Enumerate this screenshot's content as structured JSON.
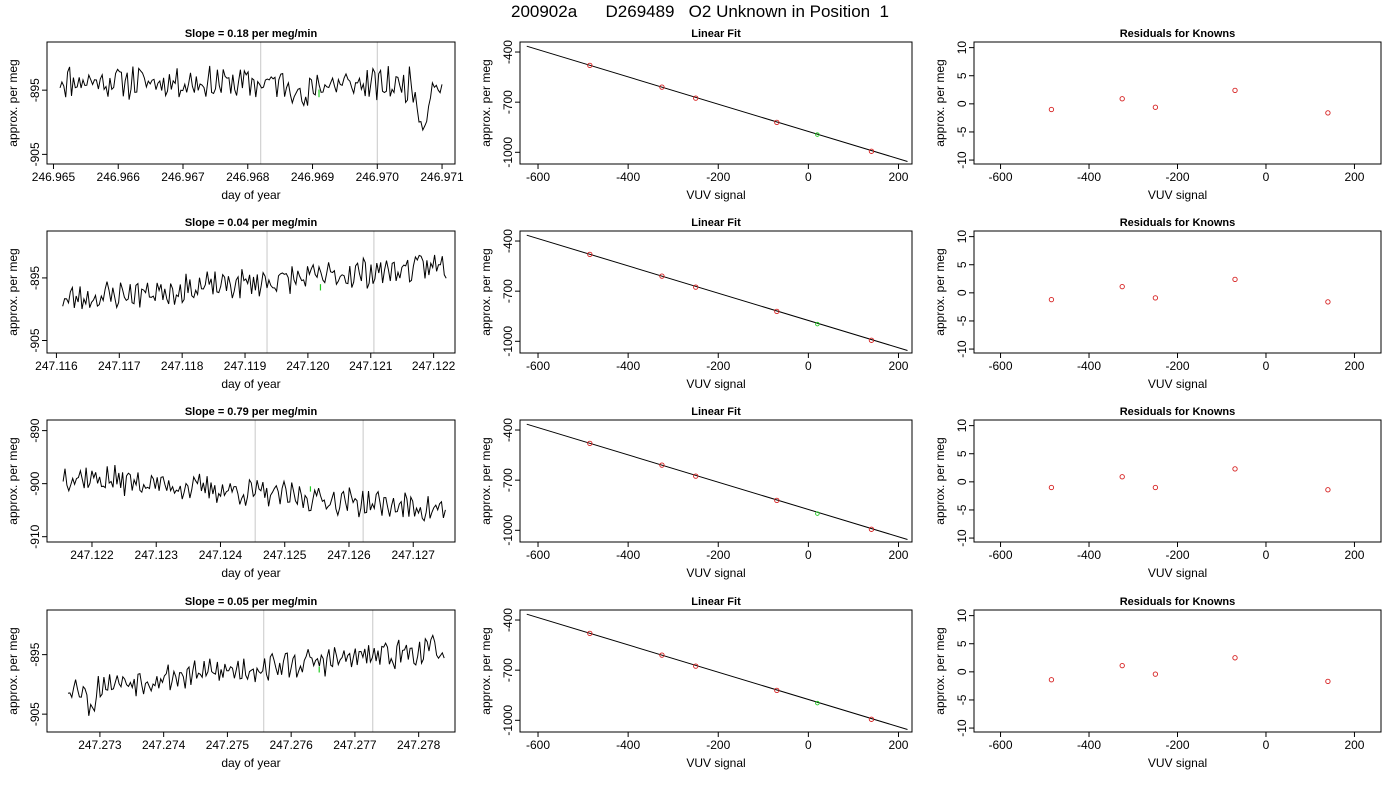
{
  "figure_title": "200902a      D269489   O2 Unknown in Position  1",
  "colors": {
    "line": "#000000",
    "vline": "#c8c8c8",
    "known": "#d62020",
    "unknown": "#22cc22",
    "frame": "#000000"
  },
  "chart_data": [
    {
      "type": "line",
      "row": 1,
      "col": 1,
      "title": "Slope =  0.18  per meg/min",
      "xlabel": "day of year",
      "ylabel": "approx. per meg",
      "xlim": [
        246.9649,
        246.9712
      ],
      "ylim": [
        -906.5,
        -887.5
      ],
      "xticks": [
        246.965,
        246.966,
        246.967,
        246.968,
        246.969,
        246.97,
        246.971
      ],
      "xtick_labels": [
        "246.965",
        "246.966",
        "246.967",
        "246.968",
        "246.969",
        "246.970",
        "246.971"
      ],
      "yticks": [
        -895,
        -905
      ],
      "ytick_labels": [
        "-895",
        "-905"
      ],
      "vlines": [
        246.9682,
        246.97
      ],
      "series": [
        {
          "x_start": 246.9651,
          "x_end": 246.971,
          "seed": 11,
          "mean": -893.5,
          "trend": -0.8,
          "noise": 2.2,
          "dips": [
            [
              0.64,
              -3.5
            ],
            [
              0.95,
              -6
            ]
          ]
        }
      ],
      "highlight": {
        "x": 246.9691,
        "y": -895.5,
        "dy": 1.2
      }
    },
    {
      "type": "scatter",
      "row": 1,
      "col": 2,
      "title": "Linear Fit",
      "xlabel": "VUV signal",
      "ylabel": "approx. per meg",
      "xlim": [
        -640,
        230
      ],
      "ylim": [
        -1070,
        -340
      ],
      "xticks": [
        -600,
        -400,
        -200,
        0,
        200
      ],
      "xtick_labels": [
        "-600",
        "-400",
        "-200",
        "0",
        "200"
      ],
      "yticks": [
        -400,
        -700,
        -1000
      ],
      "ytick_labels": [
        "-400",
        "-700",
        "-1000"
      ],
      "fit_line": {
        "x": [
          -625,
          220
        ],
        "y": [
          -365,
          -1055
        ]
      },
      "knowns": {
        "x": [
          -485,
          -325,
          -250,
          -70,
          140
        ],
        "y": [
          -480,
          -610,
          -676,
          -821,
          -994
        ]
      },
      "unknown": {
        "x": [
          20
        ],
        "y": [
          -894
        ]
      }
    },
    {
      "type": "scatter",
      "row": 1,
      "col": 3,
      "title": "Residuals for Knowns",
      "xlabel": "VUV signal",
      "ylabel": "approx. per meg",
      "xlim": [
        -660,
        260
      ],
      "ylim": [
        -10.7,
        11
      ],
      "xticks": [
        -600,
        -400,
        -200,
        0,
        200
      ],
      "xtick_labels": [
        "-600",
        "-400",
        "-200",
        "0",
        "200"
      ],
      "yticks": [
        -10,
        -5,
        0,
        5,
        10
      ],
      "ytick_labels": [
        "-10",
        "-5",
        "0",
        "5",
        "10"
      ],
      "knowns": {
        "x": [
          -485,
          -325,
          -250,
          -70,
          140
        ],
        "y": [
          -1.0,
          0.9,
          -0.6,
          2.4,
          -1.6
        ]
      }
    },
    {
      "type": "line",
      "row": 2,
      "col": 1,
      "title": "Slope =  0.04  per meg/min",
      "xlabel": "day of year",
      "ylabel": "approx. per meg",
      "xlim": [
        247.11585,
        247.12234
      ],
      "ylim": [
        -907,
        -887.5
      ],
      "xticks": [
        247.116,
        247.117,
        247.118,
        247.119,
        247.12,
        247.121,
        247.122
      ],
      "xtick_labels": [
        "247.116",
        "247.117",
        "247.118",
        "247.119",
        "247.120",
        "247.121",
        "247.122"
      ],
      "yticks": [
        -895,
        -905
      ],
      "ytick_labels": [
        "-895",
        "-905"
      ],
      "vlines": [
        247.11935,
        247.12105
      ],
      "series": [
        {
          "x_start": 247.1161,
          "x_end": 247.1222,
          "seed": 23,
          "mean": -898.5,
          "trend": 5.5,
          "noise": 2.0,
          "dips": []
        }
      ],
      "highlight": {
        "x": 247.1202,
        "y": -896.5,
        "dy": 1.0
      }
    },
    {
      "type": "scatter",
      "row": 2,
      "col": 2,
      "title": "Linear Fit",
      "xlabel": "VUV signal",
      "ylabel": "approx. per meg",
      "xlim": [
        -640,
        230
      ],
      "ylim": [
        -1070,
        -340
      ],
      "xticks": [
        -600,
        -400,
        -200,
        0,
        200
      ],
      "xtick_labels": [
        "-600",
        "-400",
        "-200",
        "0",
        "200"
      ],
      "yticks": [
        -400,
        -700,
        -1000
      ],
      "ytick_labels": [
        "-400",
        "-700",
        "-1000"
      ],
      "fit_line": {
        "x": [
          -625,
          220
        ],
        "y": [
          -365,
          -1055
        ]
      },
      "knowns": {
        "x": [
          -485,
          -325,
          -250,
          -70,
          140
        ],
        "y": [
          -480,
          -610,
          -676,
          -821,
          -994
        ]
      },
      "unknown": {
        "x": [
          20
        ],
        "y": [
          -897
        ]
      }
    },
    {
      "type": "scatter",
      "row": 2,
      "col": 3,
      "title": "Residuals for Knowns",
      "xlabel": "VUV signal",
      "ylabel": "approx. per meg",
      "xlim": [
        -660,
        260
      ],
      "ylim": [
        -10.7,
        11
      ],
      "xticks": [
        -600,
        -400,
        -200,
        0,
        200
      ],
      "xtick_labels": [
        "-600",
        "-400",
        "-200",
        "0",
        "200"
      ],
      "yticks": [
        -10,
        -5,
        0,
        5,
        10
      ],
      "ytick_labels": [
        "-10",
        "-5",
        "0",
        "5",
        "10"
      ],
      "knowns": {
        "x": [
          -485,
          -325,
          -250,
          -70,
          140
        ],
        "y": [
          -1.2,
          1.1,
          -0.9,
          2.4,
          -1.6
        ]
      }
    },
    {
      "type": "line",
      "row": 3,
      "col": 1,
      "title": "Slope =  0.79  per meg/min",
      "xlabel": "day of year",
      "ylabel": "approx. per meg",
      "xlim": [
        247.1213,
        247.12765
      ],
      "ylim": [
        -911,
        -888
      ],
      "xticks": [
        247.122,
        247.123,
        247.124,
        247.125,
        247.126,
        247.127
      ],
      "xtick_labels": [
        "247.122",
        "247.123",
        "247.124",
        "247.125",
        "247.126",
        "247.127"
      ],
      "yticks": [
        -890,
        -900,
        -910
      ],
      "ytick_labels": [
        "-890",
        "-900",
        "-910"
      ],
      "vlines": [
        247.12454,
        247.12622
      ],
      "series": [
        {
          "x_start": 247.12155,
          "x_end": 247.1275,
          "seed": 37,
          "mean": -898.5,
          "trend": -6.5,
          "noise": 2.2,
          "dips": []
        }
      ],
      "highlight": {
        "x": 247.1254,
        "y": -901.0,
        "dy": 1.0
      }
    },
    {
      "type": "scatter",
      "row": 3,
      "col": 2,
      "title": "Linear Fit",
      "xlabel": "VUV signal",
      "ylabel": "approx. per meg",
      "xlim": [
        -640,
        230
      ],
      "ylim": [
        -1070,
        -340
      ],
      "xticks": [
        -600,
        -400,
        -200,
        0,
        200
      ],
      "xtick_labels": [
        "-600",
        "-400",
        "-200",
        "0",
        "200"
      ],
      "yticks": [
        -400,
        -700,
        -1000
      ],
      "ytick_labels": [
        "-400",
        "-700",
        "-1000"
      ],
      "fit_line": {
        "x": [
          -625,
          220
        ],
        "y": [
          -365,
          -1055
        ]
      },
      "knowns": {
        "x": [
          -485,
          -325,
          -250,
          -70,
          140
        ],
        "y": [
          -480,
          -610,
          -676,
          -821,
          -994
        ]
      },
      "unknown": {
        "x": [
          20
        ],
        "y": [
          -900
        ]
      }
    },
    {
      "type": "scatter",
      "row": 3,
      "col": 3,
      "title": "Residuals for Knowns",
      "xlabel": "VUV signal",
      "ylabel": "approx. per meg",
      "xlim": [
        -660,
        260
      ],
      "ylim": [
        -10.7,
        11
      ],
      "xticks": [
        -600,
        -400,
        -200,
        0,
        200
      ],
      "xtick_labels": [
        "-600",
        "-400",
        "-200",
        "0",
        "200"
      ],
      "yticks": [
        -10,
        -5,
        0,
        5,
        10
      ],
      "ytick_labels": [
        "-10",
        "-5",
        "0",
        "5",
        "10"
      ],
      "knowns": {
        "x": [
          -485,
          -325,
          -250,
          -70,
          140
        ],
        "y": [
          -1.0,
          0.9,
          -1.0,
          2.3,
          -1.4
        ]
      }
    },
    {
      "type": "line",
      "row": 4,
      "col": 1,
      "title": "Slope =  0.05  per meg/min",
      "xlabel": "day of year",
      "ylabel": "approx. per meg",
      "xlim": [
        247.27217,
        247.27857
      ],
      "ylim": [
        -908,
        -887.5
      ],
      "xticks": [
        247.273,
        247.274,
        247.275,
        247.276,
        247.277,
        247.278
      ],
      "xtick_labels": [
        "247.273",
        "247.274",
        "247.275",
        "247.276",
        "247.277",
        "247.278"
      ],
      "yticks": [
        -895,
        -905
      ],
      "ytick_labels": [
        "-895",
        "-905"
      ],
      "vlines": [
        247.27557,
        247.27728
      ],
      "series": [
        {
          "x_start": 247.2725,
          "x_end": 247.2784,
          "seed": 53,
          "mean": -900.5,
          "trend": 6.5,
          "noise": 2.0,
          "dips": [
            [
              0.06,
              -3.5
            ]
          ]
        }
      ],
      "highlight": {
        "x": 247.27644,
        "y": -897.5,
        "dy": 1.0
      }
    },
    {
      "type": "scatter",
      "row": 4,
      "col": 2,
      "title": "Linear Fit",
      "xlabel": "VUV signal",
      "ylabel": "approx. per meg",
      "xlim": [
        -640,
        230
      ],
      "ylim": [
        -1070,
        -340
      ],
      "xticks": [
        -600,
        -400,
        -200,
        0,
        200
      ],
      "xtick_labels": [
        "-600",
        "-400",
        "-200",
        "0",
        "200"
      ],
      "yticks": [
        -400,
        -700,
        -1000
      ],
      "ytick_labels": [
        "-400",
        "-700",
        "-1000"
      ],
      "fit_line": {
        "x": [
          -625,
          220
        ],
        "y": [
          -365,
          -1055
        ]
      },
      "knowns": {
        "x": [
          -485,
          -325,
          -250,
          -70,
          140
        ],
        "y": [
          -480,
          -610,
          -676,
          -821,
          -994
        ]
      },
      "unknown": {
        "x": [
          20
        ],
        "y": [
          -897
        ]
      }
    },
    {
      "type": "scatter",
      "row": 4,
      "col": 3,
      "title": "Residuals for Knowns",
      "xlabel": "VUV signal",
      "ylabel": "approx. per meg",
      "xlim": [
        -660,
        260
      ],
      "ylim": [
        -10.7,
        11
      ],
      "xticks": [
        -600,
        -400,
        -200,
        0,
        200
      ],
      "xtick_labels": [
        "-600",
        "-400",
        "-200",
        "0",
        "200"
      ],
      "yticks": [
        -10,
        -5,
        0,
        5,
        10
      ],
      "ytick_labels": [
        "-10",
        "-5",
        "0",
        "5",
        "10"
      ],
      "knowns": {
        "x": [
          -485,
          -325,
          -250,
          -70,
          140
        ],
        "y": [
          -1.4,
          1.1,
          -0.4,
          2.5,
          -1.7
        ]
      }
    }
  ]
}
